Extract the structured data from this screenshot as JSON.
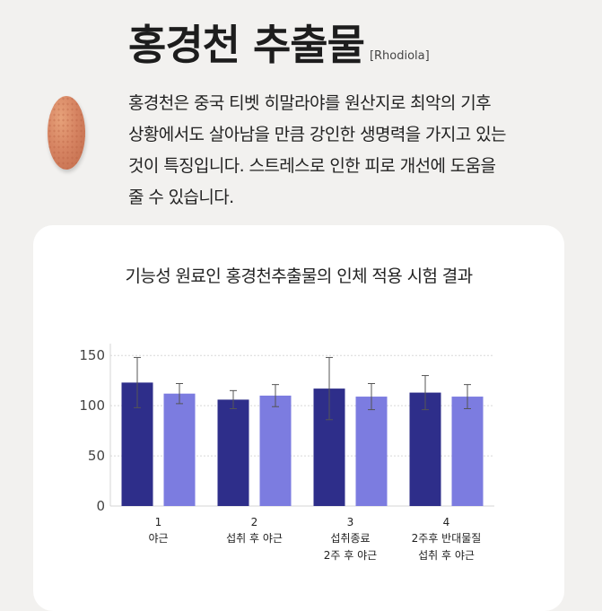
{
  "header": {
    "title": "홍경천 추출물",
    "subtitle": "[Rhodiola]"
  },
  "description": {
    "lines": [
      "홍경천은 중국 티벳 히말라야를 원산지로 최악의 기후",
      "상황에서도 살아남을 만큼 강인한 생명력을 가지고 있는",
      "것이 특징입니다. 스트레스로 인한 피로 개선에 도움을",
      "줄 수 있습니다."
    ]
  },
  "colors": {
    "series_dark": "#2e2e8a",
    "series_light": "#7c7ce0"
  },
  "chart_data": {
    "type": "bar",
    "title": "기능성 원료인 홍경천추출물의 인체 적용 시험 결과",
    "xlabel": "",
    "ylabel": "",
    "ylim": [
      0,
      160
    ],
    "yticks": [
      0,
      50,
      100,
      150
    ],
    "grid": true,
    "categories": [
      {
        "num": "1",
        "lines": [
          "야근"
        ]
      },
      {
        "num": "2",
        "lines": [
          "섭취 후 야근"
        ]
      },
      {
        "num": "3",
        "lines": [
          "섭취종료",
          "2주 후 야근"
        ]
      },
      {
        "num": "4",
        "lines": [
          "2주후 반대물질",
          "섭취 후 야근"
        ]
      }
    ],
    "series": [
      {
        "values": [
          123,
          106,
          117,
          113
        ],
        "errors": [
          25,
          9,
          31,
          17
        ]
      },
      {
        "values": [
          112,
          110,
          109,
          109
        ],
        "errors": [
          10,
          11,
          13,
          12
        ]
      }
    ]
  }
}
